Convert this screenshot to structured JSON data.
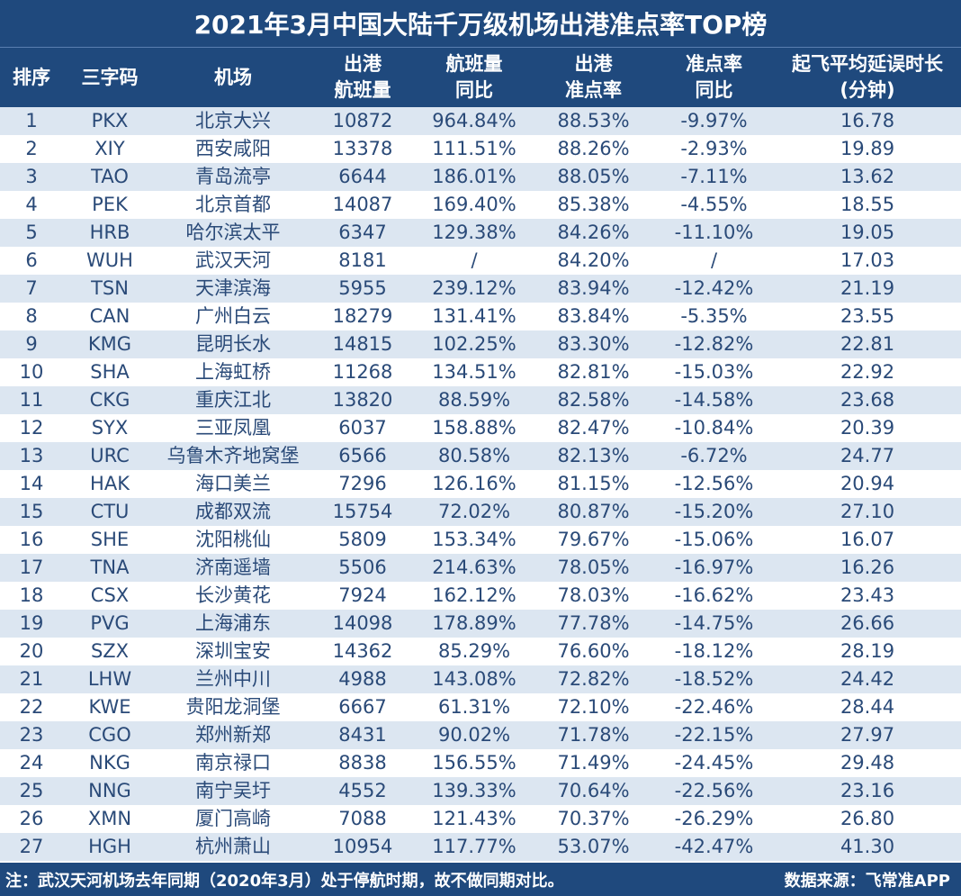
{
  "title": "2021年3月中国大陆千万级机场出港准点率TOP榜",
  "headers": [
    "排序",
    "三字码",
    "机场",
    "出港\n航班量",
    "航班量\n同比",
    "出港\n准点率",
    "准点率\n同比",
    "起飞平均延误时长\n(分钟)"
  ],
  "rows": [
    [
      "1",
      "PKX",
      "北京大兴",
      "10872",
      "964.84%",
      "88.53%",
      "-9.97%",
      "16.78"
    ],
    [
      "2",
      "XIY",
      "西安咸阳",
      "13378",
      "111.51%",
      "88.26%",
      "-2.93%",
      "19.89"
    ],
    [
      "3",
      "TAO",
      "青岛流亭",
      "6644",
      "186.01%",
      "88.05%",
      "-7.11%",
      "13.62"
    ],
    [
      "4",
      "PEK",
      "北京首都",
      "14087",
      "169.40%",
      "85.38%",
      "-4.55%",
      "18.55"
    ],
    [
      "5",
      "HRB",
      "哈尔滨太平",
      "6347",
      "129.38%",
      "84.26%",
      "-11.10%",
      "19.05"
    ],
    [
      "6",
      "WUH",
      "武汉天河",
      "8181",
      "/",
      "84.20%",
      "/",
      "17.03"
    ],
    [
      "7",
      "TSN",
      "天津滨海",
      "5955",
      "239.12%",
      "83.94%",
      "-12.42%",
      "21.19"
    ],
    [
      "8",
      "CAN",
      "广州白云",
      "18279",
      "131.41%",
      "83.84%",
      "-5.35%",
      "23.55"
    ],
    [
      "9",
      "KMG",
      "昆明长水",
      "14815",
      "102.25%",
      "83.30%",
      "-12.82%",
      "22.81"
    ],
    [
      "10",
      "SHA",
      "上海虹桥",
      "11268",
      "134.51%",
      "82.81%",
      "-15.03%",
      "22.92"
    ],
    [
      "11",
      "CKG",
      "重庆江北",
      "13820",
      "88.59%",
      "82.58%",
      "-14.58%",
      "23.68"
    ],
    [
      "12",
      "SYX",
      "三亚凤凰",
      "6037",
      "158.88%",
      "82.47%",
      "-10.84%",
      "20.39"
    ],
    [
      "13",
      "URC",
      "乌鲁木齐地窝堡",
      "6566",
      "80.58%",
      "82.13%",
      "-6.72%",
      "24.77"
    ],
    [
      "14",
      "HAK",
      "海口美兰",
      "7296",
      "126.16%",
      "81.15%",
      "-12.56%",
      "20.94"
    ],
    [
      "15",
      "CTU",
      "成都双流",
      "15754",
      "72.02%",
      "80.87%",
      "-15.20%",
      "27.10"
    ],
    [
      "16",
      "SHE",
      "沈阳桃仙",
      "5809",
      "153.34%",
      "79.67%",
      "-15.06%",
      "16.07"
    ],
    [
      "17",
      "TNA",
      "济南遥墙",
      "5506",
      "214.63%",
      "78.05%",
      "-16.97%",
      "16.26"
    ],
    [
      "18",
      "CSX",
      "长沙黄花",
      "7924",
      "162.12%",
      "78.03%",
      "-16.62%",
      "23.43"
    ],
    [
      "19",
      "PVG",
      "上海浦东",
      "14098",
      "178.89%",
      "77.78%",
      "-14.75%",
      "26.66"
    ],
    [
      "20",
      "SZX",
      "深圳宝安",
      "14362",
      "85.29%",
      "76.60%",
      "-18.12%",
      "28.19"
    ],
    [
      "21",
      "LHW",
      "兰州中川",
      "4988",
      "143.08%",
      "72.82%",
      "-18.52%",
      "24.42"
    ],
    [
      "22",
      "KWE",
      "贵阳龙洞堡",
      "6667",
      "61.31%",
      "72.10%",
      "-22.46%",
      "28.44"
    ],
    [
      "23",
      "CGO",
      "郑州新郑",
      "8431",
      "90.02%",
      "71.78%",
      "-22.15%",
      "27.97"
    ],
    [
      "24",
      "NKG",
      "南京禄口",
      "8838",
      "156.55%",
      "71.49%",
      "-24.45%",
      "29.48"
    ],
    [
      "25",
      "NNG",
      "南宁吴圩",
      "4552",
      "139.33%",
      "70.64%",
      "-22.56%",
      "23.16"
    ],
    [
      "26",
      "XMN",
      "厦门高崎",
      "7088",
      "121.43%",
      "70.37%",
      "-26.29%",
      "26.80"
    ],
    [
      "27",
      "HGH",
      "杭州萧山",
      "10954",
      "117.77%",
      "53.07%",
      "-42.47%",
      "41.30"
    ]
  ],
  "footer": {
    "note": "注：武汉天河机场去年同期（2020年3月）处于停航时期，故不做同期对比。",
    "source": "数据来源：飞常准APP"
  },
  "colors": {
    "header_bg": "#1f497d",
    "row_alt": "#dce6f1",
    "text": "#2a4a78"
  }
}
